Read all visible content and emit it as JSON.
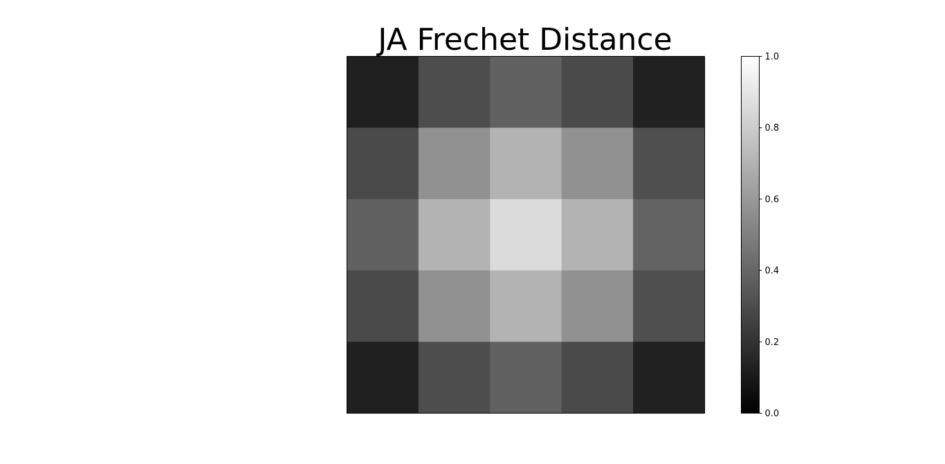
{
  "chart_data": {
    "type": "heatmap",
    "title": "JA Frechet Distance",
    "xlabel": "",
    "ylabel": "",
    "colormap": "gray",
    "vmin": 0.0,
    "vmax": 1.0,
    "matrix": [
      [
        0.12,
        0.3,
        0.38,
        0.29,
        0.13
      ],
      [
        0.29,
        0.57,
        0.7,
        0.57,
        0.31
      ],
      [
        0.38,
        0.7,
        0.86,
        0.7,
        0.39
      ],
      [
        0.29,
        0.57,
        0.7,
        0.57,
        0.31
      ],
      [
        0.12,
        0.3,
        0.38,
        0.29,
        0.13
      ]
    ],
    "colorbar": {
      "ticks": [
        0.0,
        0.2,
        0.4,
        0.6,
        0.8,
        1.0
      ],
      "tick_labels": [
        "0.0",
        "0.2",
        "0.4",
        "0.6",
        "0.8",
        "1.0"
      ]
    },
    "grid": false,
    "axes_ticks_visible": false
  },
  "colors": {
    "background": "#ffffff",
    "frame": "#000000"
  }
}
